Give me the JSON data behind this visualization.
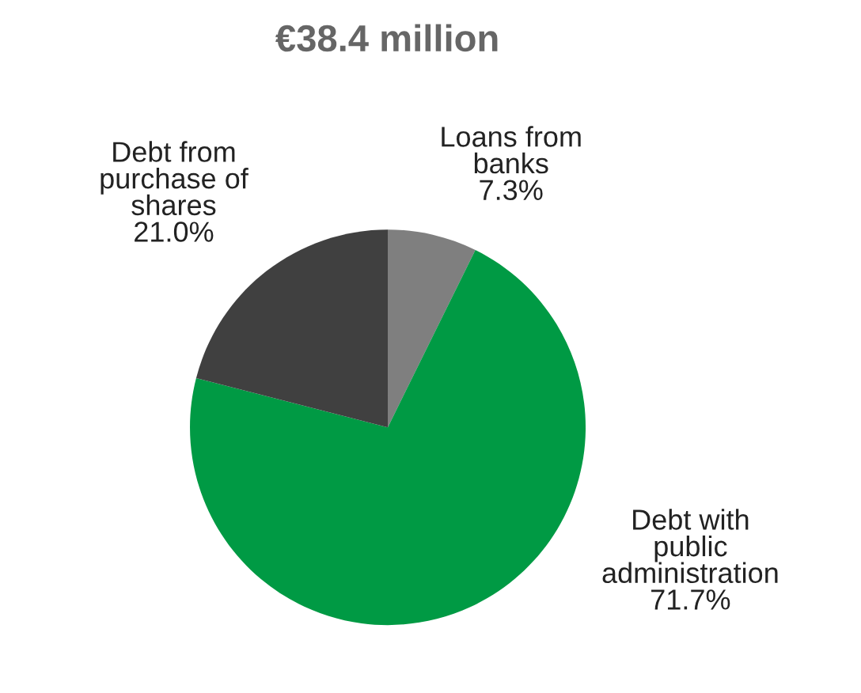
{
  "chart_data": {
    "type": "pie",
    "title": "€38.4 million",
    "categories": [
      "Loans from\nbanks",
      "Debt with\npublic\nadministration",
      "Debt from\npurchase of\nshares"
    ],
    "values": [
      7.3,
      71.7,
      21.0
    ],
    "value_labels": [
      "7.3%",
      "71.7%",
      "21.0%"
    ],
    "colors": [
      "#7f7f7f",
      "#009a44",
      "#404040"
    ]
  }
}
